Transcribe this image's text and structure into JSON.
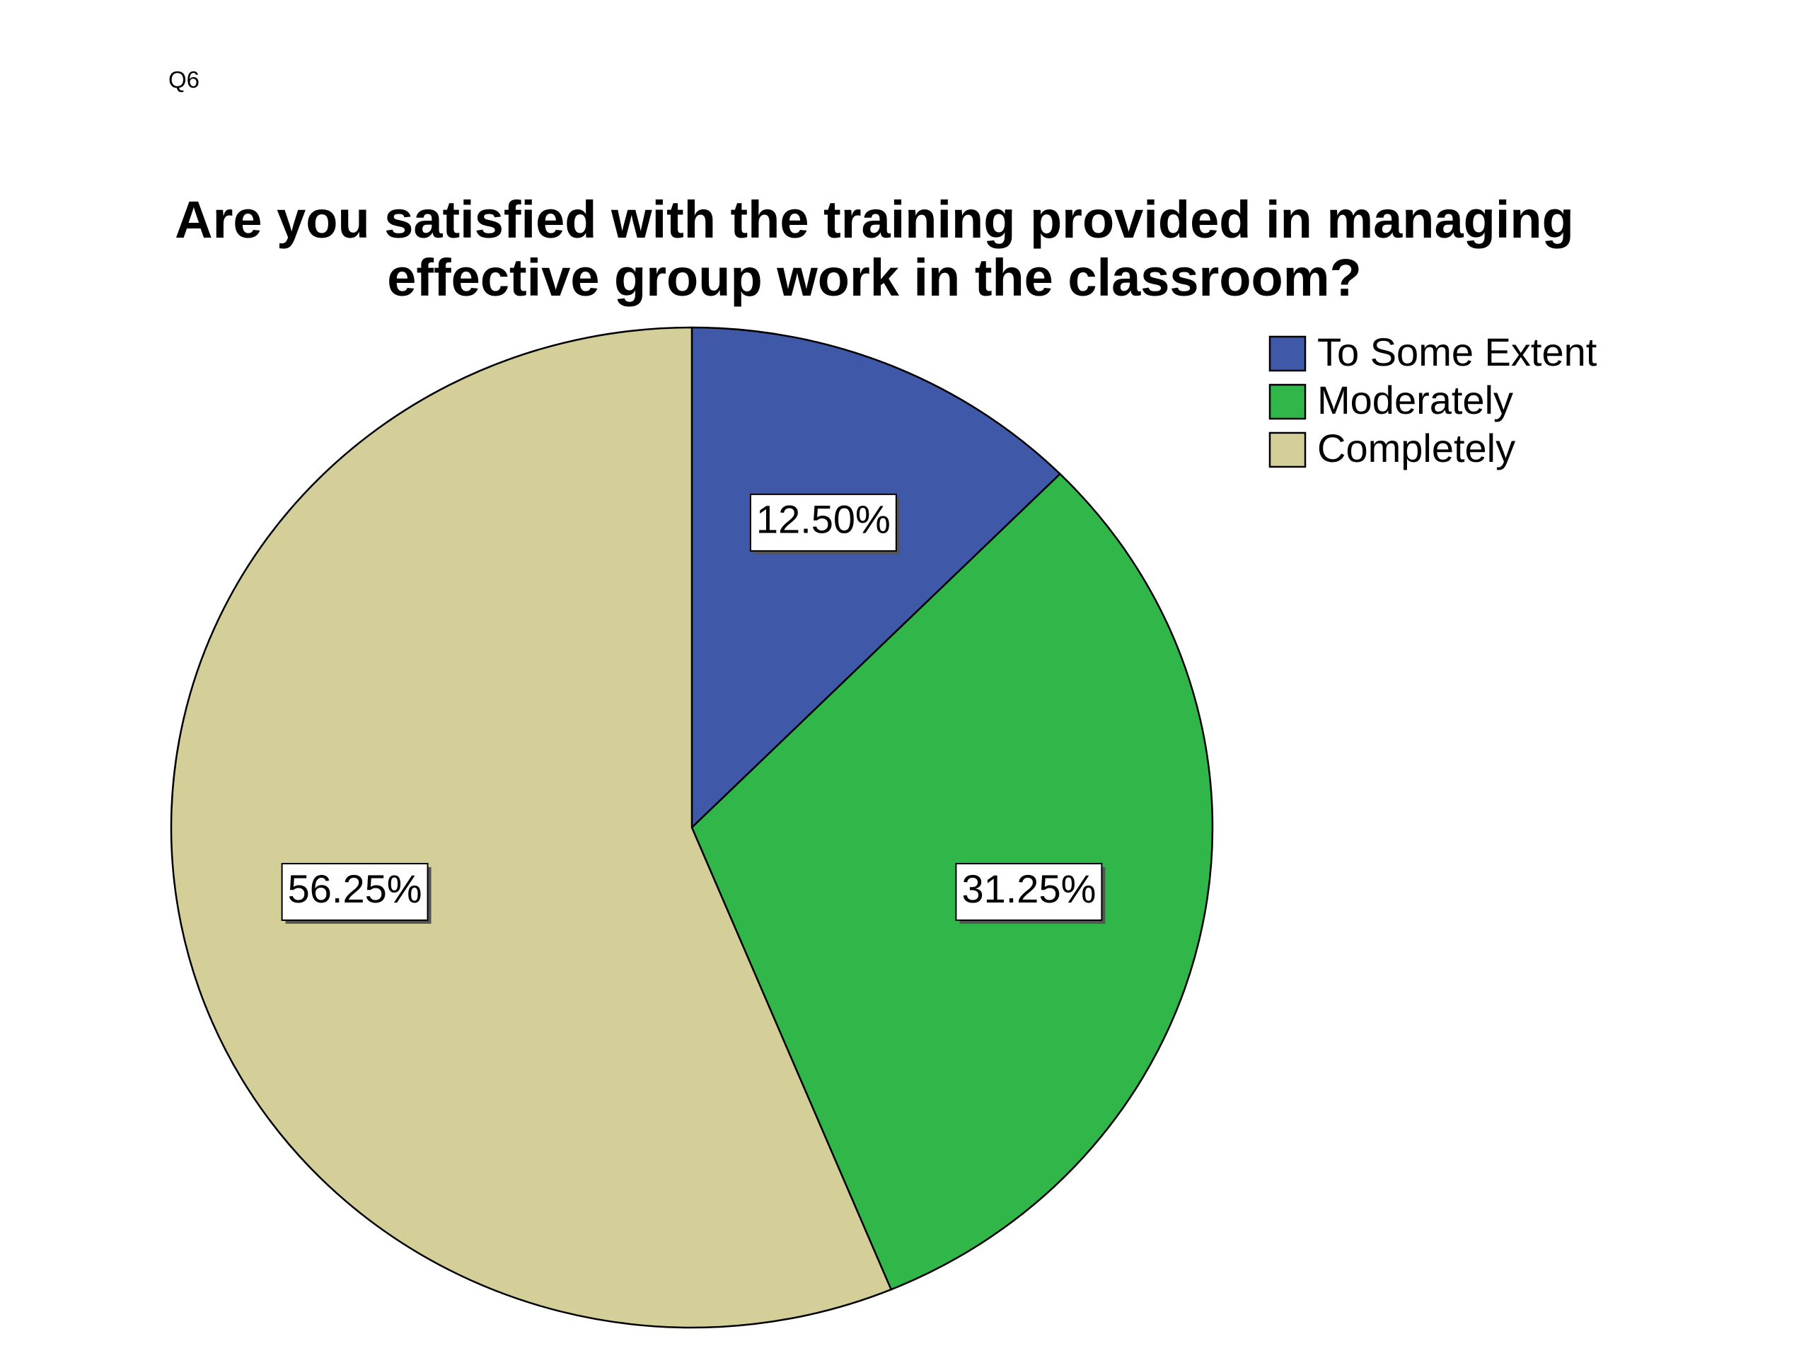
{
  "page_label": "Q6",
  "chart_data": {
    "type": "pie",
    "title": "Are you satisfied with the training provided in managing effective group work in the classroom?",
    "categories": [
      "To Some Extent",
      "Moderately",
      "Completely"
    ],
    "values": [
      12.5,
      31.25,
      56.25
    ],
    "value_labels": [
      "12.50%",
      "31.25%",
      "56.25%"
    ],
    "colors": [
      "#3f58a8",
      "#31b64a",
      "#d4cf98"
    ],
    "legend": "top-right"
  }
}
